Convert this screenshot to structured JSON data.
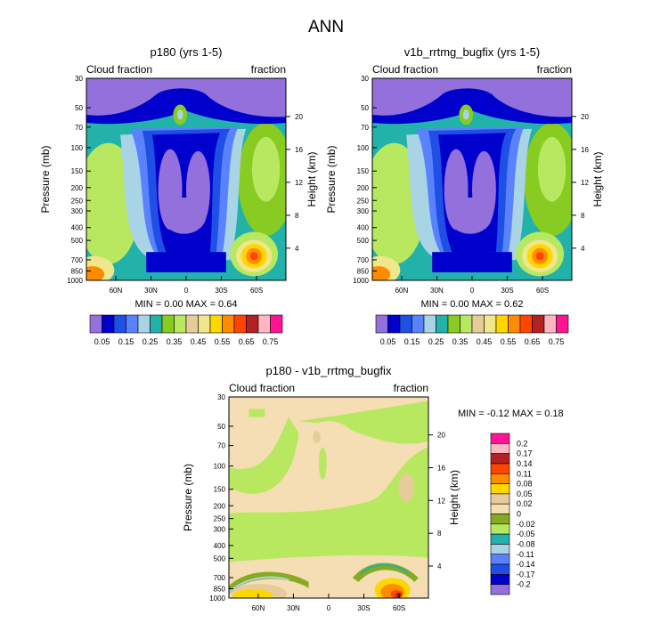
{
  "page_title": "ANN",
  "chart_data": [
    {
      "type": "heatmap",
      "title": "p180 (yrs 1-5)",
      "left_label": "Cloud fraction",
      "right_label": "fraction",
      "ylabel": "Pressure (mb)",
      "ylabel_right": "Height (km)",
      "pressure_ticks": [
        "30",
        "50",
        "70",
        "100",
        "150",
        "200",
        "250",
        "300",
        "400",
        "500",
        "700",
        "850",
        "1000"
      ],
      "height_ticks": [
        "20",
        "16",
        "12",
        "8",
        "4"
      ],
      "lat_ticks": [
        "60N",
        "30N",
        "0",
        "30S",
        "60S"
      ],
      "min_label": "MIN =",
      "min_value": "0.00",
      "max_label": "MAX =",
      "max_value": "0.64",
      "colorbar": {
        "orientation": "horizontal",
        "colors": [
          "#9370db",
          "#0000cd",
          "#1e50e6",
          "#5a82ff",
          "#a8d4e6",
          "#22b2aa",
          "#88cc22",
          "#b8e860",
          "#e6cc99",
          "#f0e68c",
          "#ffd700",
          "#ff8c00",
          "#ff4500",
          "#b22222",
          "#ffb6c1",
          "#ff1493"
        ],
        "labels": [
          "0.05",
          "0.15",
          "0.25",
          "0.35",
          "0.45",
          "0.55",
          "0.65",
          "0.75"
        ]
      }
    },
    {
      "type": "heatmap",
      "title": "v1b_rrtmg_bugfix (yrs 1-5)",
      "left_label": "Cloud fraction",
      "right_label": "fraction",
      "ylabel": "Pressure (mb)",
      "ylabel_right": "Height (km)",
      "pressure_ticks": [
        "30",
        "50",
        "70",
        "100",
        "150",
        "200",
        "250",
        "300",
        "400",
        "500",
        "700",
        "850",
        "1000"
      ],
      "height_ticks": [
        "20",
        "16",
        "12",
        "8",
        "4"
      ],
      "lat_ticks": [
        "60N",
        "30N",
        "0",
        "30S",
        "60S"
      ],
      "min_label": "MIN =",
      "min_value": "0.00",
      "max_label": "MAX =",
      "max_value": "0.62",
      "colorbar": {
        "orientation": "horizontal",
        "colors": [
          "#9370db",
          "#0000cd",
          "#1e50e6",
          "#5a82ff",
          "#a8d4e6",
          "#22b2aa",
          "#88cc22",
          "#b8e860",
          "#e6cc99",
          "#f0e68c",
          "#ffd700",
          "#ff8c00",
          "#ff4500",
          "#b22222",
          "#ffb6c1",
          "#ff1493"
        ],
        "labels": [
          "0.05",
          "0.15",
          "0.25",
          "0.35",
          "0.45",
          "0.55",
          "0.65",
          "0.75"
        ]
      }
    },
    {
      "type": "heatmap",
      "title": "p180 - v1b_rrtmg_bugfix",
      "left_label": "Cloud fraction",
      "right_label": "fraction",
      "ylabel": "Pressure (mb)",
      "ylabel_right": "Height (km)",
      "pressure_ticks": [
        "30",
        "50",
        "70",
        "100",
        "150",
        "200",
        "250",
        "300",
        "400",
        "500",
        "700",
        "850",
        "1000"
      ],
      "height_ticks": [
        "20",
        "16",
        "12",
        "8",
        "4"
      ],
      "lat_ticks": [
        "60N",
        "30N",
        "0",
        "30S",
        "60S"
      ],
      "min_label": "MIN =",
      "min_value": "-0.12",
      "max_label": "MAX =",
      "max_value": "0.18",
      "colorbar": {
        "orientation": "vertical",
        "colors": [
          "#ff1493",
          "#ffb6c1",
          "#b22222",
          "#ff4500",
          "#ff8c00",
          "#ffd700",
          "#e6cc99",
          "#f5deb3",
          "#88aa22",
          "#b8e860",
          "#22b2aa",
          "#a8d4e6",
          "#5a82ff",
          "#1e50e6",
          "#0000cd",
          "#9370db"
        ],
        "labels": [
          "0.2",
          "0.17",
          "0.14",
          "0.11",
          "0.08",
          "0.05",
          "0.02",
          "0",
          "-0.02",
          "-0.05",
          "-0.08",
          "-0.11",
          "-0.14",
          "-0.17",
          "-0.2"
        ]
      }
    }
  ]
}
